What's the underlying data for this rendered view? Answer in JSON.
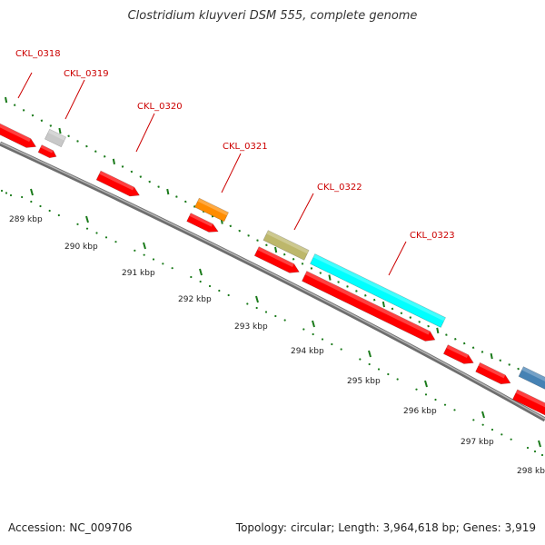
{
  "title": "Clostridium kluyveri DSM 555, complete genome",
  "footer": {
    "accession_label": "Accession:",
    "accession_value": "NC_009706",
    "topology_label": "Topology:",
    "topology_value": "circular;",
    "length_label": "Length:",
    "length_value": "3,964,618 bp;",
    "genes_label": "Genes:",
    "genes_value": "3,919"
  },
  "colors": {
    "forward_cds": "#ff0000",
    "backbone": "#888888",
    "tick_mark": "#1a7a1a",
    "callout_text": "#cc0000",
    "scale_text": "#222222"
  },
  "ruler": {
    "labels": [
      "289 kbp",
      "290 kbp",
      "291 kbp",
      "292 kbp",
      "293 kbp",
      "294 kbp",
      "295 kbp",
      "296 kbp",
      "297 kbp",
      "298 kbp"
    ]
  },
  "callouts": [
    {
      "label": "CKL_0318"
    },
    {
      "label": "CKL_0319"
    },
    {
      "label": "CKL_0320"
    },
    {
      "label": "CKL_0321"
    },
    {
      "label": "CKL_0322"
    },
    {
      "label": "CKL_0323"
    }
  ],
  "features": [
    {
      "name": "gene-forward",
      "color": "#ff0000"
    },
    {
      "name": "gene-reverse",
      "color": "#ff0000"
    },
    {
      "name": "CKL_0319",
      "color": "#c8c8c8"
    },
    {
      "name": "gene-forward",
      "color": "#ff0000"
    },
    {
      "name": "CKL_0321",
      "color": "#ff8c00"
    },
    {
      "name": "gene-forward",
      "color": "#ff0000"
    },
    {
      "name": "CKL_0322",
      "color": "#bdb76b"
    },
    {
      "name": "gene-forward",
      "color": "#ff0000"
    },
    {
      "name": "CKL_0323",
      "color": "#00ffff"
    },
    {
      "name": "gene-forward",
      "color": "#ff0000"
    },
    {
      "name": "gene-forward",
      "color": "#ff0000"
    },
    {
      "name": "gene-forward",
      "color": "#ff0000"
    },
    {
      "name": "gene-forward",
      "color": "#ff0000"
    },
    {
      "name": "gene-other",
      "color": "#4682b4"
    }
  ]
}
